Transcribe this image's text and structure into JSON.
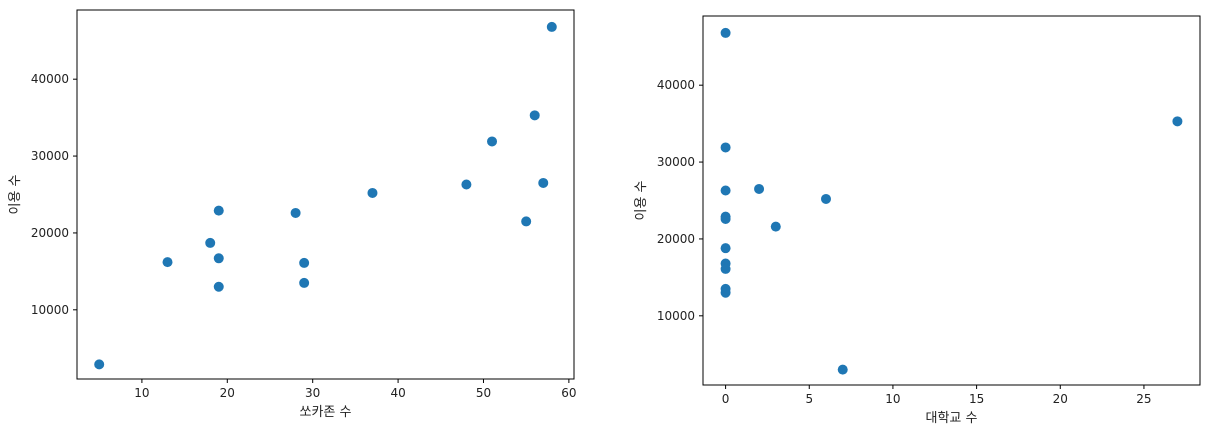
{
  "chart_data": [
    {
      "type": "scatter",
      "xlabel": "쏘카존 수",
      "ylabel": "이용 수",
      "xlim": [
        2.4,
        60.6
      ],
      "ylim": [
        1000,
        49000
      ],
      "xticks": [
        10,
        20,
        30,
        40,
        50,
        60
      ],
      "yticks": [
        10000,
        20000,
        30000,
        40000
      ],
      "grid": false,
      "marker_color": "#1f77b4",
      "points": [
        {
          "x": 5,
          "y": 2900
        },
        {
          "x": 13,
          "y": 16200
        },
        {
          "x": 18,
          "y": 18700
        },
        {
          "x": 19,
          "y": 22900
        },
        {
          "x": 19,
          "y": 16700
        },
        {
          "x": 19,
          "y": 13000
        },
        {
          "x": 28,
          "y": 22600
        },
        {
          "x": 29,
          "y": 16100
        },
        {
          "x": 29,
          "y": 13500
        },
        {
          "x": 37,
          "y": 25200
        },
        {
          "x": 48,
          "y": 26300
        },
        {
          "x": 51,
          "y": 31900
        },
        {
          "x": 55,
          "y": 21500
        },
        {
          "x": 56,
          "y": 35300
        },
        {
          "x": 57,
          "y": 26500
        },
        {
          "x": 58,
          "y": 46800
        }
      ]
    },
    {
      "type": "scatter",
      "xlabel": "대학교 수",
      "ylabel": "이용 수",
      "xlim": [
        -1.35,
        28.35
      ],
      "ylim": [
        1000,
        49000
      ],
      "xticks": [
        0,
        5,
        10,
        15,
        20,
        25
      ],
      "yticks": [
        10000,
        20000,
        30000,
        40000
      ],
      "grid": false,
      "marker_color": "#1f77b4",
      "points": [
        {
          "x": 0,
          "y": 46800
        },
        {
          "x": 0,
          "y": 31900
        },
        {
          "x": 0,
          "y": 26300
        },
        {
          "x": 0,
          "y": 22900
        },
        {
          "x": 0,
          "y": 22600
        },
        {
          "x": 0,
          "y": 18800
        },
        {
          "x": 0,
          "y": 16800
        },
        {
          "x": 0,
          "y": 16100
        },
        {
          "x": 0,
          "y": 13500
        },
        {
          "x": 0,
          "y": 13000
        },
        {
          "x": 2,
          "y": 26500
        },
        {
          "x": 3,
          "y": 21600
        },
        {
          "x": 6,
          "y": 25200
        },
        {
          "x": 7,
          "y": 3000
        },
        {
          "x": 27,
          "y": 35300
        }
      ]
    }
  ]
}
